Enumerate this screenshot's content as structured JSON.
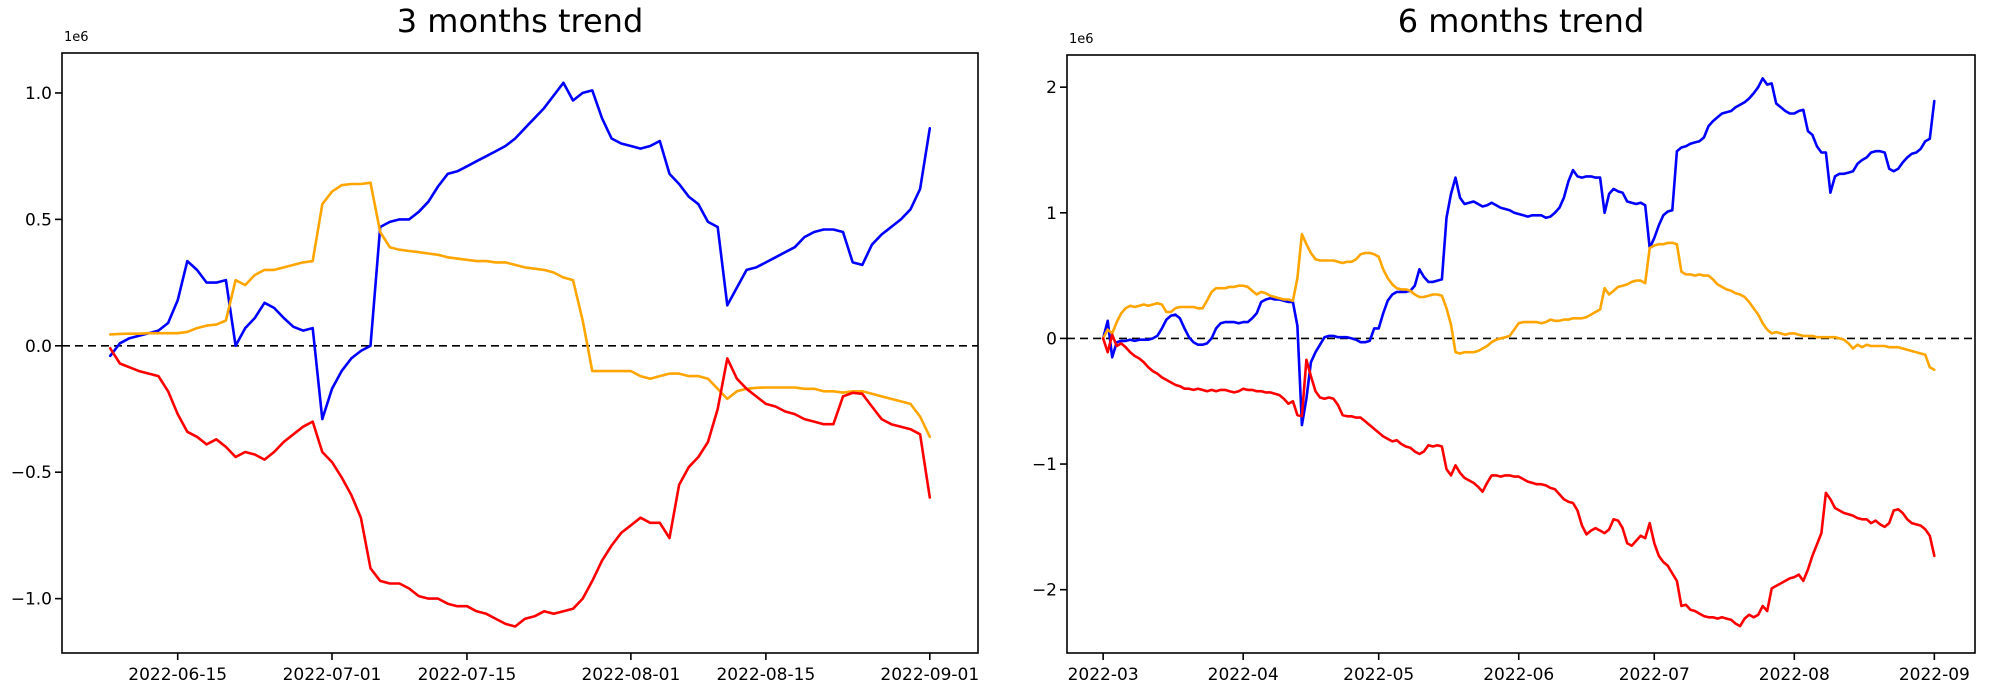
{
  "figure": {
    "background": "#ffffff",
    "axis_color": "#000000",
    "tick_label_color": "#000000"
  },
  "chart_data": [
    {
      "type": "line",
      "title": "3 months trend",
      "y_offset_label": "1e6",
      "value_unit": 1000000,
      "grid": false,
      "legend": "none",
      "x_domain": [
        "2022-06-03",
        "2022-09-06"
      ],
      "y_domain": [
        -1.215,
        1.158
      ],
      "x_ticks": [
        {
          "label": "2022-06-15",
          "date": "2022-06-15"
        },
        {
          "label": "2022-07-01",
          "date": "2022-07-01"
        },
        {
          "label": "2022-07-15",
          "date": "2022-07-15"
        },
        {
          "label": "2022-08-01",
          "date": "2022-08-01"
        },
        {
          "label": "2022-08-15",
          "date": "2022-08-15"
        },
        {
          "label": "2022-09-01",
          "date": "2022-09-01"
        }
      ],
      "y_ticks": [
        {
          "label": "1.0",
          "value": 1.0
        },
        {
          "label": "0.5",
          "value": 0.5
        },
        {
          "label": "0.0",
          "value": 0.0
        },
        {
          "label": "−0.5",
          "value": -0.5
        },
        {
          "label": "−1.0",
          "value": -1.0
        }
      ],
      "zero_line": {
        "value": 0,
        "style": "dashed",
        "color": "#000000"
      },
      "series": [
        {
          "name": "blue-line",
          "color": "#0000ff",
          "start_date": "2022-06-08",
          "values": [
            -0.04,
            0.01,
            0.03,
            0.04,
            0.05,
            0.06,
            0.09,
            0.18,
            0.335,
            0.3,
            0.25,
            0.25,
            0.26,
            0.0,
            0.07,
            0.11,
            0.17,
            0.15,
            0.11,
            0.075,
            0.06,
            0.07,
            -0.29,
            -0.17,
            -0.1,
            -0.05,
            -0.02,
            0.0,
            0.47,
            0.49,
            0.5,
            0.5,
            0.53,
            0.57,
            0.63,
            0.68,
            0.69,
            0.71,
            0.73,
            0.75,
            0.77,
            0.79,
            0.82,
            0.86,
            0.9,
            0.94,
            0.99,
            1.04,
            0.97,
            1.0,
            1.01,
            0.9,
            0.82,
            0.8,
            0.79,
            0.78,
            0.79,
            0.81,
            0.68,
            0.64,
            0.59,
            0.56,
            0.49,
            0.47,
            0.16,
            0.23,
            0.3,
            0.31,
            0.33,
            0.35,
            0.37,
            0.39,
            0.43,
            0.45,
            0.46,
            0.46,
            0.45,
            0.33,
            0.32,
            0.4,
            0.44,
            0.47,
            0.5,
            0.54,
            0.62,
            0.86
          ]
        },
        {
          "name": "orange-line",
          "color": "#ffa500",
          "start_date": "2022-06-08",
          "values": [
            0.045,
            0.047,
            0.048,
            0.048,
            0.05,
            0.05,
            0.05,
            0.05,
            0.055,
            0.07,
            0.08,
            0.084,
            0.1,
            0.26,
            0.24,
            0.28,
            0.3,
            0.3,
            0.31,
            0.32,
            0.33,
            0.335,
            0.56,
            0.61,
            0.635,
            0.64,
            0.64,
            0.645,
            0.45,
            0.39,
            0.38,
            0.375,
            0.37,
            0.365,
            0.36,
            0.35,
            0.345,
            0.34,
            0.335,
            0.335,
            0.33,
            0.33,
            0.32,
            0.31,
            0.305,
            0.3,
            0.29,
            0.27,
            0.26,
            0.1,
            -0.1,
            -0.1,
            -0.1,
            -0.1,
            -0.1,
            -0.12,
            -0.13,
            -0.12,
            -0.11,
            -0.11,
            -0.12,
            -0.12,
            -0.13,
            -0.17,
            -0.21,
            -0.18,
            -0.17,
            -0.166,
            -0.165,
            -0.165,
            -0.165,
            -0.165,
            -0.17,
            -0.17,
            -0.18,
            -0.18,
            -0.185,
            -0.18,
            -0.18,
            -0.19,
            -0.2,
            -0.21,
            -0.22,
            -0.23,
            -0.28,
            -0.36
          ]
        },
        {
          "name": "red-line",
          "color": "#ff0000",
          "start_date": "2022-06-08",
          "values": [
            -0.01,
            -0.07,
            -0.085,
            -0.1,
            -0.11,
            -0.12,
            -0.18,
            -0.27,
            -0.34,
            -0.36,
            -0.39,
            -0.37,
            -0.4,
            -0.44,
            -0.42,
            -0.43,
            -0.45,
            -0.42,
            -0.38,
            -0.35,
            -0.32,
            -0.3,
            -0.42,
            -0.46,
            -0.52,
            -0.59,
            -0.68,
            -0.88,
            -0.93,
            -0.94,
            -0.94,
            -0.96,
            -0.99,
            -1.0,
            -1.0,
            -1.02,
            -1.03,
            -1.03,
            -1.05,
            -1.06,
            -1.08,
            -1.1,
            -1.11,
            -1.08,
            -1.07,
            -1.05,
            -1.06,
            -1.05,
            -1.04,
            -1.0,
            -0.93,
            -0.85,
            -0.79,
            -0.74,
            -0.71,
            -0.68,
            -0.7,
            -0.7,
            -0.76,
            -0.55,
            -0.48,
            -0.44,
            -0.38,
            -0.25,
            -0.05,
            -0.13,
            -0.17,
            -0.2,
            -0.23,
            -0.24,
            -0.26,
            -0.27,
            -0.29,
            -0.3,
            -0.31,
            -0.31,
            -0.2,
            -0.186,
            -0.19,
            -0.24,
            -0.29,
            -0.31,
            -0.32,
            -0.33,
            -0.35,
            -0.6
          ]
        }
      ]
    },
    {
      "type": "line",
      "title": "6 months trend",
      "y_offset_label": "1e6",
      "value_unit": 1000000,
      "grid": false,
      "legend": "none",
      "x_domain": [
        "2022-02-21",
        "2022-09-10"
      ],
      "y_domain": [
        -2.504,
        2.256
      ],
      "x_ticks": [
        {
          "label": "2022-03",
          "date": "2022-03-01"
        },
        {
          "label": "2022-04",
          "date": "2022-04-01"
        },
        {
          "label": "2022-05",
          "date": "2022-05-01"
        },
        {
          "label": "2022-06",
          "date": "2022-06-01"
        },
        {
          "label": "2022-07",
          "date": "2022-07-01"
        },
        {
          "label": "2022-08",
          "date": "2022-08-01"
        },
        {
          "label": "2022-09",
          "date": "2022-09-01"
        }
      ],
      "y_ticks": [
        {
          "label": "2",
          "value": 2
        },
        {
          "label": "1",
          "value": 1
        },
        {
          "label": "0",
          "value": 0
        },
        {
          "label": "−1",
          "value": -1
        },
        {
          "label": "−2",
          "value": -2
        }
      ],
      "zero_line": {
        "value": 0,
        "style": "dashed",
        "color": "#000000"
      },
      "series": [
        {
          "name": "blue-line",
          "color": "#0000ff",
          "start_date": "2022-03-01",
          "values": [
            0.0,
            0.14,
            -0.15,
            -0.03,
            -0.02,
            -0.02,
            -0.01,
            -0.02,
            -0.01,
            -0.01,
            -0.01,
            0.0,
            0.02,
            0.08,
            0.15,
            0.18,
            0.19,
            0.16,
            0.08,
            0.01,
            -0.03,
            -0.05,
            -0.05,
            -0.04,
            0.0,
            0.08,
            0.12,
            0.13,
            0.13,
            0.13,
            0.12,
            0.13,
            0.13,
            0.16,
            0.2,
            0.29,
            0.31,
            0.32,
            0.31,
            0.31,
            0.3,
            0.29,
            0.29,
            0.1,
            -0.69,
            -0.48,
            -0.19,
            -0.11,
            -0.05,
            0.01,
            0.02,
            0.02,
            0.01,
            0.01,
            0.01,
            0.0,
            -0.01,
            -0.03,
            -0.03,
            -0.02,
            0.08,
            0.08,
            0.2,
            0.3,
            0.35,
            0.37,
            0.37,
            0.37,
            0.38,
            0.42,
            0.55,
            0.49,
            0.45,
            0.45,
            0.46,
            0.47,
            0.96,
            1.15,
            1.28,
            1.12,
            1.07,
            1.08,
            1.09,
            1.07,
            1.05,
            1.06,
            1.08,
            1.06,
            1.04,
            1.03,
            1.02,
            1.0,
            0.99,
            0.98,
            0.97,
            0.98,
            0.98,
            0.98,
            0.96,
            0.97,
            1.0,
            1.04,
            1.12,
            1.25,
            1.34,
            1.29,
            1.28,
            1.29,
            1.29,
            1.28,
            1.28,
            1.0,
            1.15,
            1.19,
            1.17,
            1.16,
            1.09,
            1.08,
            1.07,
            1.08,
            1.06,
            0.72,
            0.8,
            0.9,
            0.98,
            1.01,
            1.02,
            1.49,
            1.52,
            1.53,
            1.55,
            1.56,
            1.57,
            1.6,
            1.69,
            1.73,
            1.76,
            1.79,
            1.8,
            1.81,
            1.84,
            1.86,
            1.88,
            1.91,
            1.95,
            2.0,
            2.07,
            2.02,
            2.03,
            1.87,
            1.84,
            1.81,
            1.79,
            1.79,
            1.81,
            1.82,
            1.65,
            1.62,
            1.53,
            1.48,
            1.48,
            1.16,
            1.29,
            1.31,
            1.31,
            1.32,
            1.33,
            1.39,
            1.42,
            1.44,
            1.48,
            1.49,
            1.49,
            1.48,
            1.35,
            1.33,
            1.35,
            1.4,
            1.44,
            1.47,
            1.48,
            1.51,
            1.57,
            1.59,
            1.89
          ]
        },
        {
          "name": "orange-line",
          "color": "#ffa500",
          "start_date": "2022-03-01",
          "values": [
            0.0,
            0.07,
            0.04,
            0.13,
            0.2,
            0.24,
            0.26,
            0.25,
            0.26,
            0.27,
            0.26,
            0.27,
            0.28,
            0.27,
            0.21,
            0.21,
            0.24,
            0.25,
            0.25,
            0.25,
            0.25,
            0.24,
            0.24,
            0.3,
            0.37,
            0.4,
            0.4,
            0.4,
            0.41,
            0.41,
            0.42,
            0.42,
            0.41,
            0.38,
            0.35,
            0.37,
            0.36,
            0.34,
            0.33,
            0.32,
            0.31,
            0.31,
            0.3,
            0.48,
            0.83,
            0.75,
            0.68,
            0.63,
            0.62,
            0.62,
            0.62,
            0.62,
            0.61,
            0.6,
            0.61,
            0.61,
            0.63,
            0.67,
            0.68,
            0.68,
            0.67,
            0.65,
            0.55,
            0.48,
            0.43,
            0.4,
            0.39,
            0.39,
            0.38,
            0.35,
            0.33,
            0.33,
            0.34,
            0.35,
            0.35,
            0.34,
            0.24,
            0.11,
            -0.11,
            -0.12,
            -0.11,
            -0.11,
            -0.11,
            -0.1,
            -0.08,
            -0.06,
            -0.03,
            -0.01,
            0.0,
            0.01,
            0.02,
            0.07,
            0.12,
            0.13,
            0.13,
            0.13,
            0.13,
            0.12,
            0.13,
            0.15,
            0.14,
            0.14,
            0.15,
            0.15,
            0.16,
            0.16,
            0.16,
            0.17,
            0.19,
            0.21,
            0.23,
            0.4,
            0.35,
            0.38,
            0.41,
            0.42,
            0.43,
            0.45,
            0.46,
            0.46,
            0.44,
            0.72,
            0.74,
            0.75,
            0.75,
            0.76,
            0.76,
            0.75,
            0.53,
            0.51,
            0.51,
            0.5,
            0.51,
            0.5,
            0.5,
            0.47,
            0.43,
            0.41,
            0.39,
            0.38,
            0.36,
            0.35,
            0.33,
            0.29,
            0.24,
            0.19,
            0.12,
            0.07,
            0.04,
            0.05,
            0.04,
            0.03,
            0.04,
            0.04,
            0.03,
            0.02,
            0.02,
            0.02,
            0.01,
            0.01,
            0.01,
            0.01,
            0.01,
            0.0,
            -0.01,
            -0.04,
            -0.08,
            -0.05,
            -0.07,
            -0.05,
            -0.06,
            -0.06,
            -0.06,
            -0.06,
            -0.07,
            -0.07,
            -0.07,
            -0.08,
            -0.09,
            -0.1,
            -0.11,
            -0.12,
            -0.13,
            -0.23,
            -0.25
          ]
        },
        {
          "name": "red-line",
          "color": "#ff0000",
          "start_date": "2022-03-01",
          "values": [
            0.0,
            -0.11,
            0.03,
            -0.06,
            -0.04,
            -0.07,
            -0.11,
            -0.14,
            -0.16,
            -0.19,
            -0.23,
            -0.26,
            -0.28,
            -0.31,
            -0.33,
            -0.35,
            -0.37,
            -0.38,
            -0.4,
            -0.4,
            -0.41,
            -0.4,
            -0.41,
            -0.42,
            -0.41,
            -0.42,
            -0.41,
            -0.41,
            -0.42,
            -0.43,
            -0.42,
            -0.4,
            -0.41,
            -0.41,
            -0.42,
            -0.42,
            -0.43,
            -0.43,
            -0.44,
            -0.45,
            -0.48,
            -0.52,
            -0.5,
            -0.61,
            -0.62,
            -0.17,
            -0.3,
            -0.42,
            -0.47,
            -0.48,
            -0.47,
            -0.48,
            -0.53,
            -0.61,
            -0.62,
            -0.62,
            -0.63,
            -0.63,
            -0.66,
            -0.69,
            -0.72,
            -0.75,
            -0.78,
            -0.8,
            -0.82,
            -0.81,
            -0.84,
            -0.86,
            -0.87,
            -0.9,
            -0.92,
            -0.9,
            -0.85,
            -0.86,
            -0.85,
            -0.86,
            -1.04,
            -1.09,
            -1.01,
            -1.07,
            -1.11,
            -1.13,
            -1.15,
            -1.18,
            -1.22,
            -1.15,
            -1.09,
            -1.09,
            -1.1,
            -1.09,
            -1.09,
            -1.1,
            -1.1,
            -1.12,
            -1.14,
            -1.15,
            -1.16,
            -1.16,
            -1.17,
            -1.19,
            -1.2,
            -1.24,
            -1.28,
            -1.3,
            -1.31,
            -1.37,
            -1.49,
            -1.56,
            -1.53,
            -1.51,
            -1.53,
            -1.55,
            -1.52,
            -1.44,
            -1.45,
            -1.51,
            -1.63,
            -1.65,
            -1.61,
            -1.57,
            -1.59,
            -1.47,
            -1.63,
            -1.73,
            -1.78,
            -1.81,
            -1.87,
            -1.93,
            -2.13,
            -2.12,
            -2.16,
            -2.17,
            -2.19,
            -2.21,
            -2.22,
            -2.22,
            -2.23,
            -2.22,
            -2.23,
            -2.24,
            -2.27,
            -2.29,
            -2.23,
            -2.2,
            -2.22,
            -2.2,
            -2.13,
            -2.17,
            -1.99,
            -1.97,
            -1.95,
            -1.93,
            -1.91,
            -1.9,
            -1.88,
            -1.93,
            -1.84,
            -1.73,
            -1.64,
            -1.55,
            -1.23,
            -1.28,
            -1.35,
            -1.37,
            -1.39,
            -1.4,
            -1.41,
            -1.43,
            -1.44,
            -1.44,
            -1.47,
            -1.45,
            -1.48,
            -1.5,
            -1.47,
            -1.37,
            -1.36,
            -1.39,
            -1.44,
            -1.47,
            -1.48,
            -1.49,
            -1.52,
            -1.57,
            -1.73
          ]
        }
      ]
    }
  ]
}
